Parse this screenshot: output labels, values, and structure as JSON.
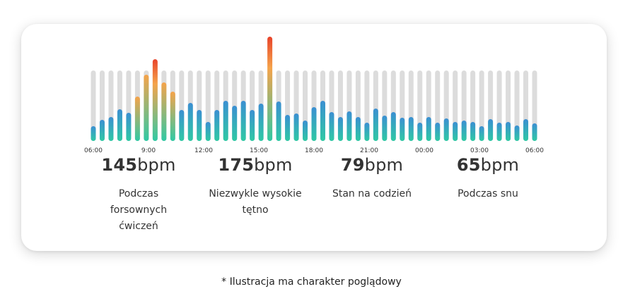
{
  "chart_data": {
    "type": "bar",
    "x_tick_labels": [
      "06:00",
      "9:00",
      "12:00",
      "15:00",
      "18:00",
      "21:00",
      "00:00",
      "03:00",
      "06:00"
    ],
    "max_value": 1.0,
    "values": [
      0.21,
      0.3,
      0.34,
      0.45,
      0.4,
      0.63,
      0.94,
      1.16,
      0.83,
      0.7,
      0.44,
      0.54,
      0.44,
      0.27,
      0.44,
      0.57,
      0.5,
      0.57,
      0.44,
      0.53,
      1.48,
      0.56,
      0.37,
      0.39,
      0.29,
      0.48,
      0.57,
      0.41,
      0.34,
      0.42,
      0.34,
      0.26,
      0.46,
      0.36,
      0.41,
      0.33,
      0.34,
      0.26,
      0.34,
      0.26,
      0.32,
      0.27,
      0.29,
      0.27,
      0.21,
      0.31,
      0.26,
      0.27,
      0.22,
      0.31,
      0.25
    ],
    "colors": {
      "track": "#dcdcdc",
      "normal_top": "#3b8fd2",
      "normal_bottom": "#2fc9a4",
      "high_top": "#f5a34a",
      "peak_top": "#e8432a",
      "green": "#2fc9a4"
    }
  },
  "stats": [
    {
      "value": "145",
      "unit": "bpm",
      "label_lines": [
        "Podczas",
        "forsownych",
        "ćwiczeń"
      ]
    },
    {
      "value": "175",
      "unit": "bpm",
      "label_lines": [
        "Niezwykle wysokie",
        "tętno"
      ]
    },
    {
      "value": "79",
      "unit": "bpm",
      "label_lines": [
        "Stan na codzień"
      ]
    },
    {
      "value": "65",
      "unit": "bpm",
      "label_lines": [
        "Podczas snu"
      ]
    }
  ],
  "footnote": "* Ilustracja ma charakter poglądowy"
}
